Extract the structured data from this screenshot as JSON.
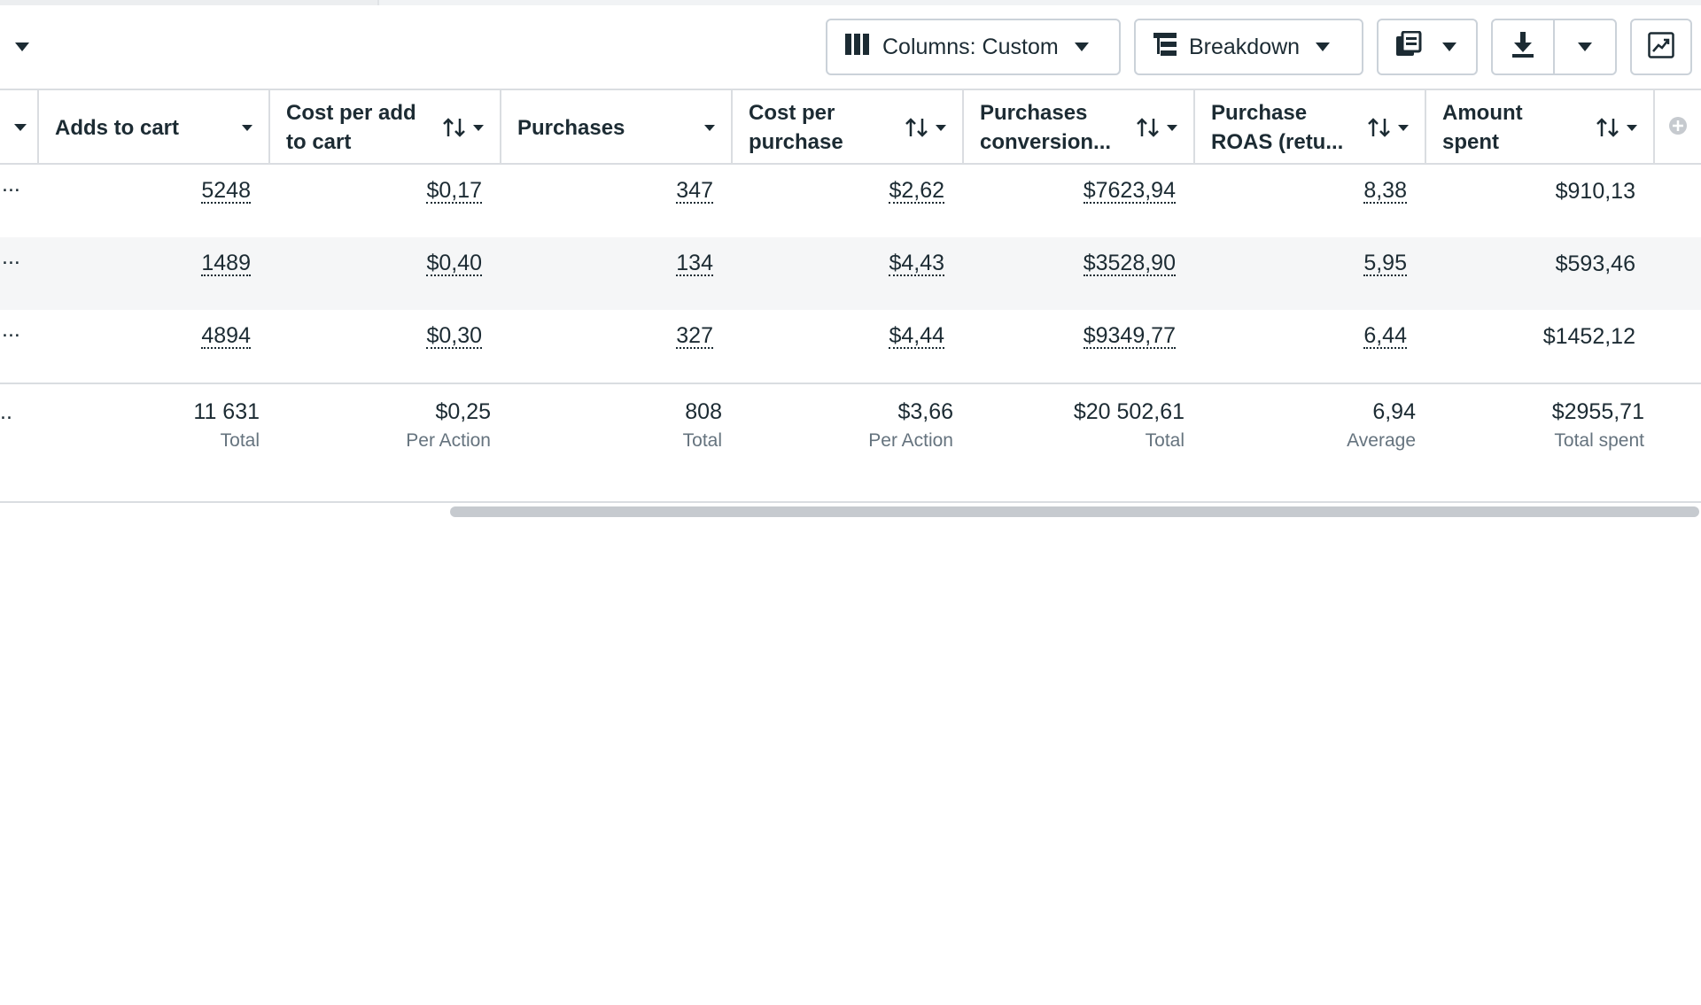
{
  "toolbar": {
    "columns_label": "Columns: Custom",
    "breakdown_label": "Breakdown",
    "icons": {
      "columns": "columns-icon",
      "breakdown": "breakdown-icon",
      "reports": "reports-icon",
      "export": "download-icon",
      "chart": "chart-icon"
    }
  },
  "table": {
    "left_fragment": "...",
    "headers": [
      {
        "line1": "Adds to cart",
        "line2": ""
      },
      {
        "line1": "Cost per add",
        "line2": "to cart"
      },
      {
        "line1": "Purchases",
        "line2": ""
      },
      {
        "line1": "Cost per",
        "line2": "purchase"
      },
      {
        "line1": "Purchases",
        "line2": "conversion..."
      },
      {
        "line1": "Purchase",
        "line2": "ROAS (retu..."
      },
      {
        "line1": "Amount",
        "line2": "spent"
      }
    ],
    "rows": [
      {
        "cells": [
          "5248",
          "$0,17",
          "347",
          "$2,62",
          "$7623,94",
          "8,38",
          "$910,13"
        ]
      },
      {
        "cells": [
          "1489",
          "$0,40",
          "134",
          "$4,43",
          "$3528,90",
          "5,95",
          "$593,46"
        ]
      },
      {
        "cells": [
          "4894",
          "$0,30",
          "327",
          "$4,44",
          "$9349,77",
          "6,44",
          "$1452,12"
        ]
      }
    ],
    "totals": {
      "fragment": "..",
      "cells": [
        {
          "value": "11 631",
          "label": "Total"
        },
        {
          "value": "$0,25",
          "label": "Per Action"
        },
        {
          "value": "808",
          "label": "Total"
        },
        {
          "value": "$3,66",
          "label": "Per Action"
        },
        {
          "value": "$20 502,61",
          "label": "Total"
        },
        {
          "value": "6,94",
          "label": "Average"
        },
        {
          "value": "$2955,71",
          "label": "Total spent"
        }
      ]
    }
  }
}
